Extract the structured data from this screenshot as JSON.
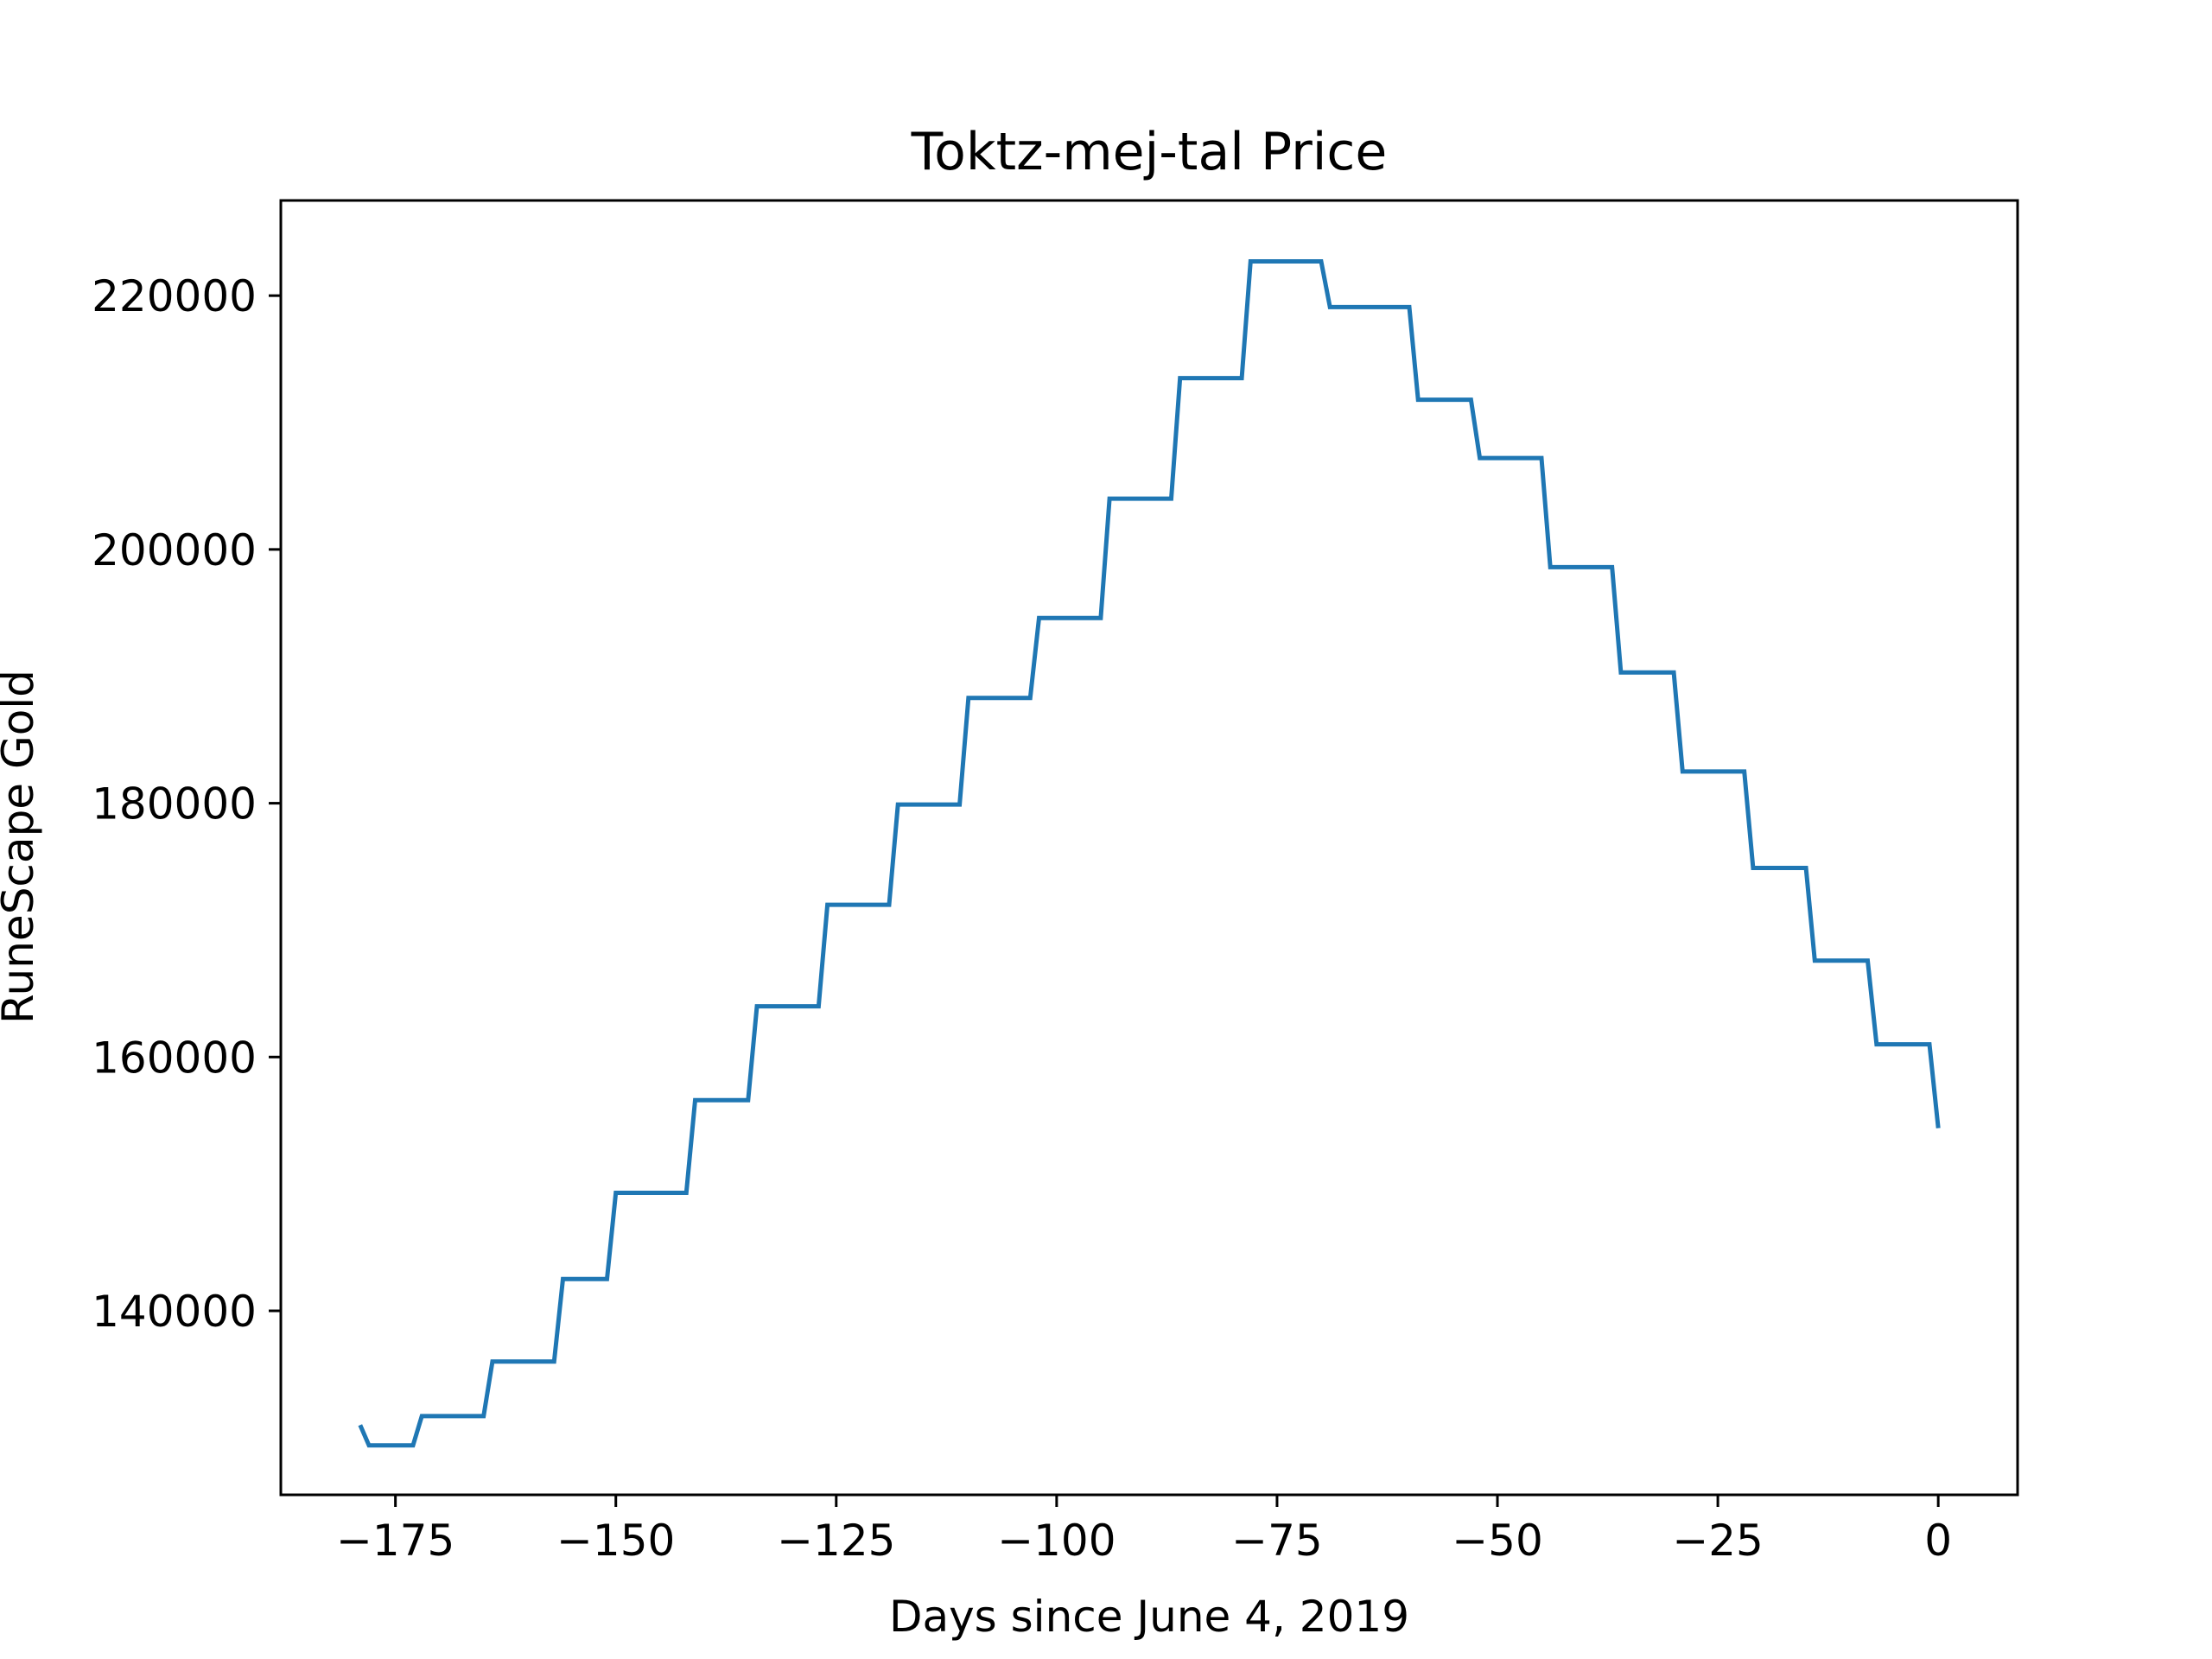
{
  "chart_data": {
    "type": "line",
    "title": "Toktz-mej-tal Price",
    "xlabel": "Days since June 4, 2019",
    "ylabel": "RuneScape Gold",
    "xlim": [
      -188,
      9
    ],
    "ylim": [
      125500,
      227500
    ],
    "xticks": [
      -175,
      -150,
      -125,
      -100,
      -75,
      -50,
      -25,
      0
    ],
    "yticks": [
      140000,
      160000,
      180000,
      200000,
      220000
    ],
    "xtick_labels": [
      "−175",
      "−150",
      "−125",
      "−100",
      "−75",
      "−50",
      "−25",
      "0"
    ],
    "ytick_labels": [
      "140000",
      "160000",
      "180000",
      "200000",
      "220000"
    ],
    "grid": false,
    "series": [
      {
        "color": "#1f77b4",
        "x": [
          -179,
          -178,
          -173,
          -172,
          -165,
          -164,
          -157,
          -156,
          -151,
          -150,
          -142,
          -141,
          -135,
          -134,
          -127,
          -126,
          -119,
          -118,
          -111,
          -110,
          -103,
          -102,
          -95,
          -94,
          -87,
          -86,
          -79,
          -78,
          -70,
          -69,
          -60,
          -59,
          -53,
          -52,
          -45,
          -44,
          -37,
          -36,
          -30,
          -29,
          -22,
          -21,
          -15,
          -14,
          -8,
          -7,
          -1,
          0
        ],
        "y": [
          131000,
          129400,
          129400,
          131700,
          131700,
          136000,
          136000,
          142500,
          142500,
          149300,
          149300,
          156600,
          156600,
          164000,
          164000,
          172000,
          172000,
          179900,
          179900,
          188300,
          188300,
          194600,
          194600,
          204000,
          204000,
          213500,
          213500,
          222700,
          222700,
          219100,
          219100,
          211800,
          211800,
          207200,
          207200,
          198600,
          198600,
          190300,
          190300,
          182500,
          182500,
          174900,
          174900,
          167600,
          167600,
          161000,
          161000,
          154400
        ]
      }
    ]
  }
}
